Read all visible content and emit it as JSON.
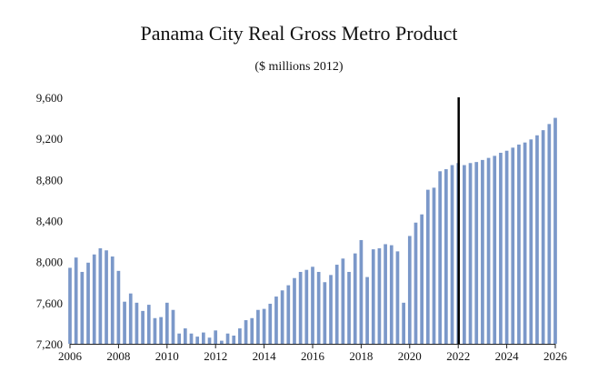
{
  "chart_data": {
    "type": "bar",
    "title": "Panama City Real Gross Metro Product",
    "subtitle": "($ millions 2012)",
    "xlabel": "",
    "ylabel": "",
    "ylim": [
      7200,
      9600
    ],
    "yticks": [
      7200,
      7600,
      8000,
      8400,
      8800,
      9200,
      9600
    ],
    "ytick_labels": [
      "7,200",
      "7,600",
      "8,000",
      "8,400",
      "8,800",
      "9,200",
      "9,600"
    ],
    "xlim": [
      2006,
      2026
    ],
    "xticks": [
      2006,
      2008,
      2010,
      2012,
      2014,
      2016,
      2018,
      2020,
      2022,
      2024,
      2026
    ],
    "xtick_labels": [
      "2006",
      "2008",
      "2010",
      "2012",
      "2014",
      "2016",
      "2018",
      "2020",
      "2022",
      "2024",
      "2026"
    ],
    "forecast_marker_x": 2022,
    "bar_color": "#7b98c9",
    "marker_color": "#000000",
    "grid": false,
    "series": [
      {
        "name": "Real Gross Metro Product",
        "x": [
          2006.0,
          2006.25,
          2006.5,
          2006.75,
          2007.0,
          2007.25,
          2007.5,
          2007.75,
          2008.0,
          2008.25,
          2008.5,
          2008.75,
          2009.0,
          2009.25,
          2009.5,
          2009.75,
          2010.0,
          2010.25,
          2010.5,
          2010.75,
          2011.0,
          2011.25,
          2011.5,
          2011.75,
          2012.0,
          2012.25,
          2012.5,
          2012.75,
          2013.0,
          2013.25,
          2013.5,
          2013.75,
          2014.0,
          2014.25,
          2014.5,
          2014.75,
          2015.0,
          2015.25,
          2015.5,
          2015.75,
          2016.0,
          2016.25,
          2016.5,
          2016.75,
          2017.0,
          2017.25,
          2017.5,
          2017.75,
          2018.0,
          2018.25,
          2018.5,
          2018.75,
          2019.0,
          2019.25,
          2019.5,
          2019.75,
          2020.0,
          2020.25,
          2020.5,
          2020.75,
          2021.0,
          2021.25,
          2021.5,
          2021.75,
          2022.0,
          2022.25,
          2022.5,
          2022.75,
          2023.0,
          2023.25,
          2023.5,
          2023.75,
          2024.0,
          2024.25,
          2024.5,
          2024.75,
          2025.0,
          2025.25,
          2025.5,
          2025.75,
          2026.0
        ],
        "values": [
          7940,
          8040,
          7900,
          7990,
          8070,
          8130,
          8110,
          8050,
          7910,
          7610,
          7690,
          7600,
          7520,
          7580,
          7450,
          7460,
          7600,
          7530,
          7300,
          7350,
          7300,
          7270,
          7310,
          7260,
          7330,
          7230,
          7300,
          7280,
          7350,
          7430,
          7450,
          7530,
          7540,
          7590,
          7660,
          7720,
          7770,
          7840,
          7900,
          7920,
          7950,
          7900,
          7800,
          7870,
          7970,
          8030,
          7900,
          8080,
          8210,
          7850,
          8120,
          8130,
          8170,
          8160,
          8100,
          7600,
          8250,
          8380,
          8460,
          8700,
          8720,
          8880,
          8900,
          8940,
          8960,
          8940,
          8960,
          8970,
          8990,
          9010,
          9030,
          9060,
          9080,
          9110,
          9140,
          9160,
          9190,
          9230,
          9280,
          9340,
          9400
        ]
      }
    ]
  }
}
